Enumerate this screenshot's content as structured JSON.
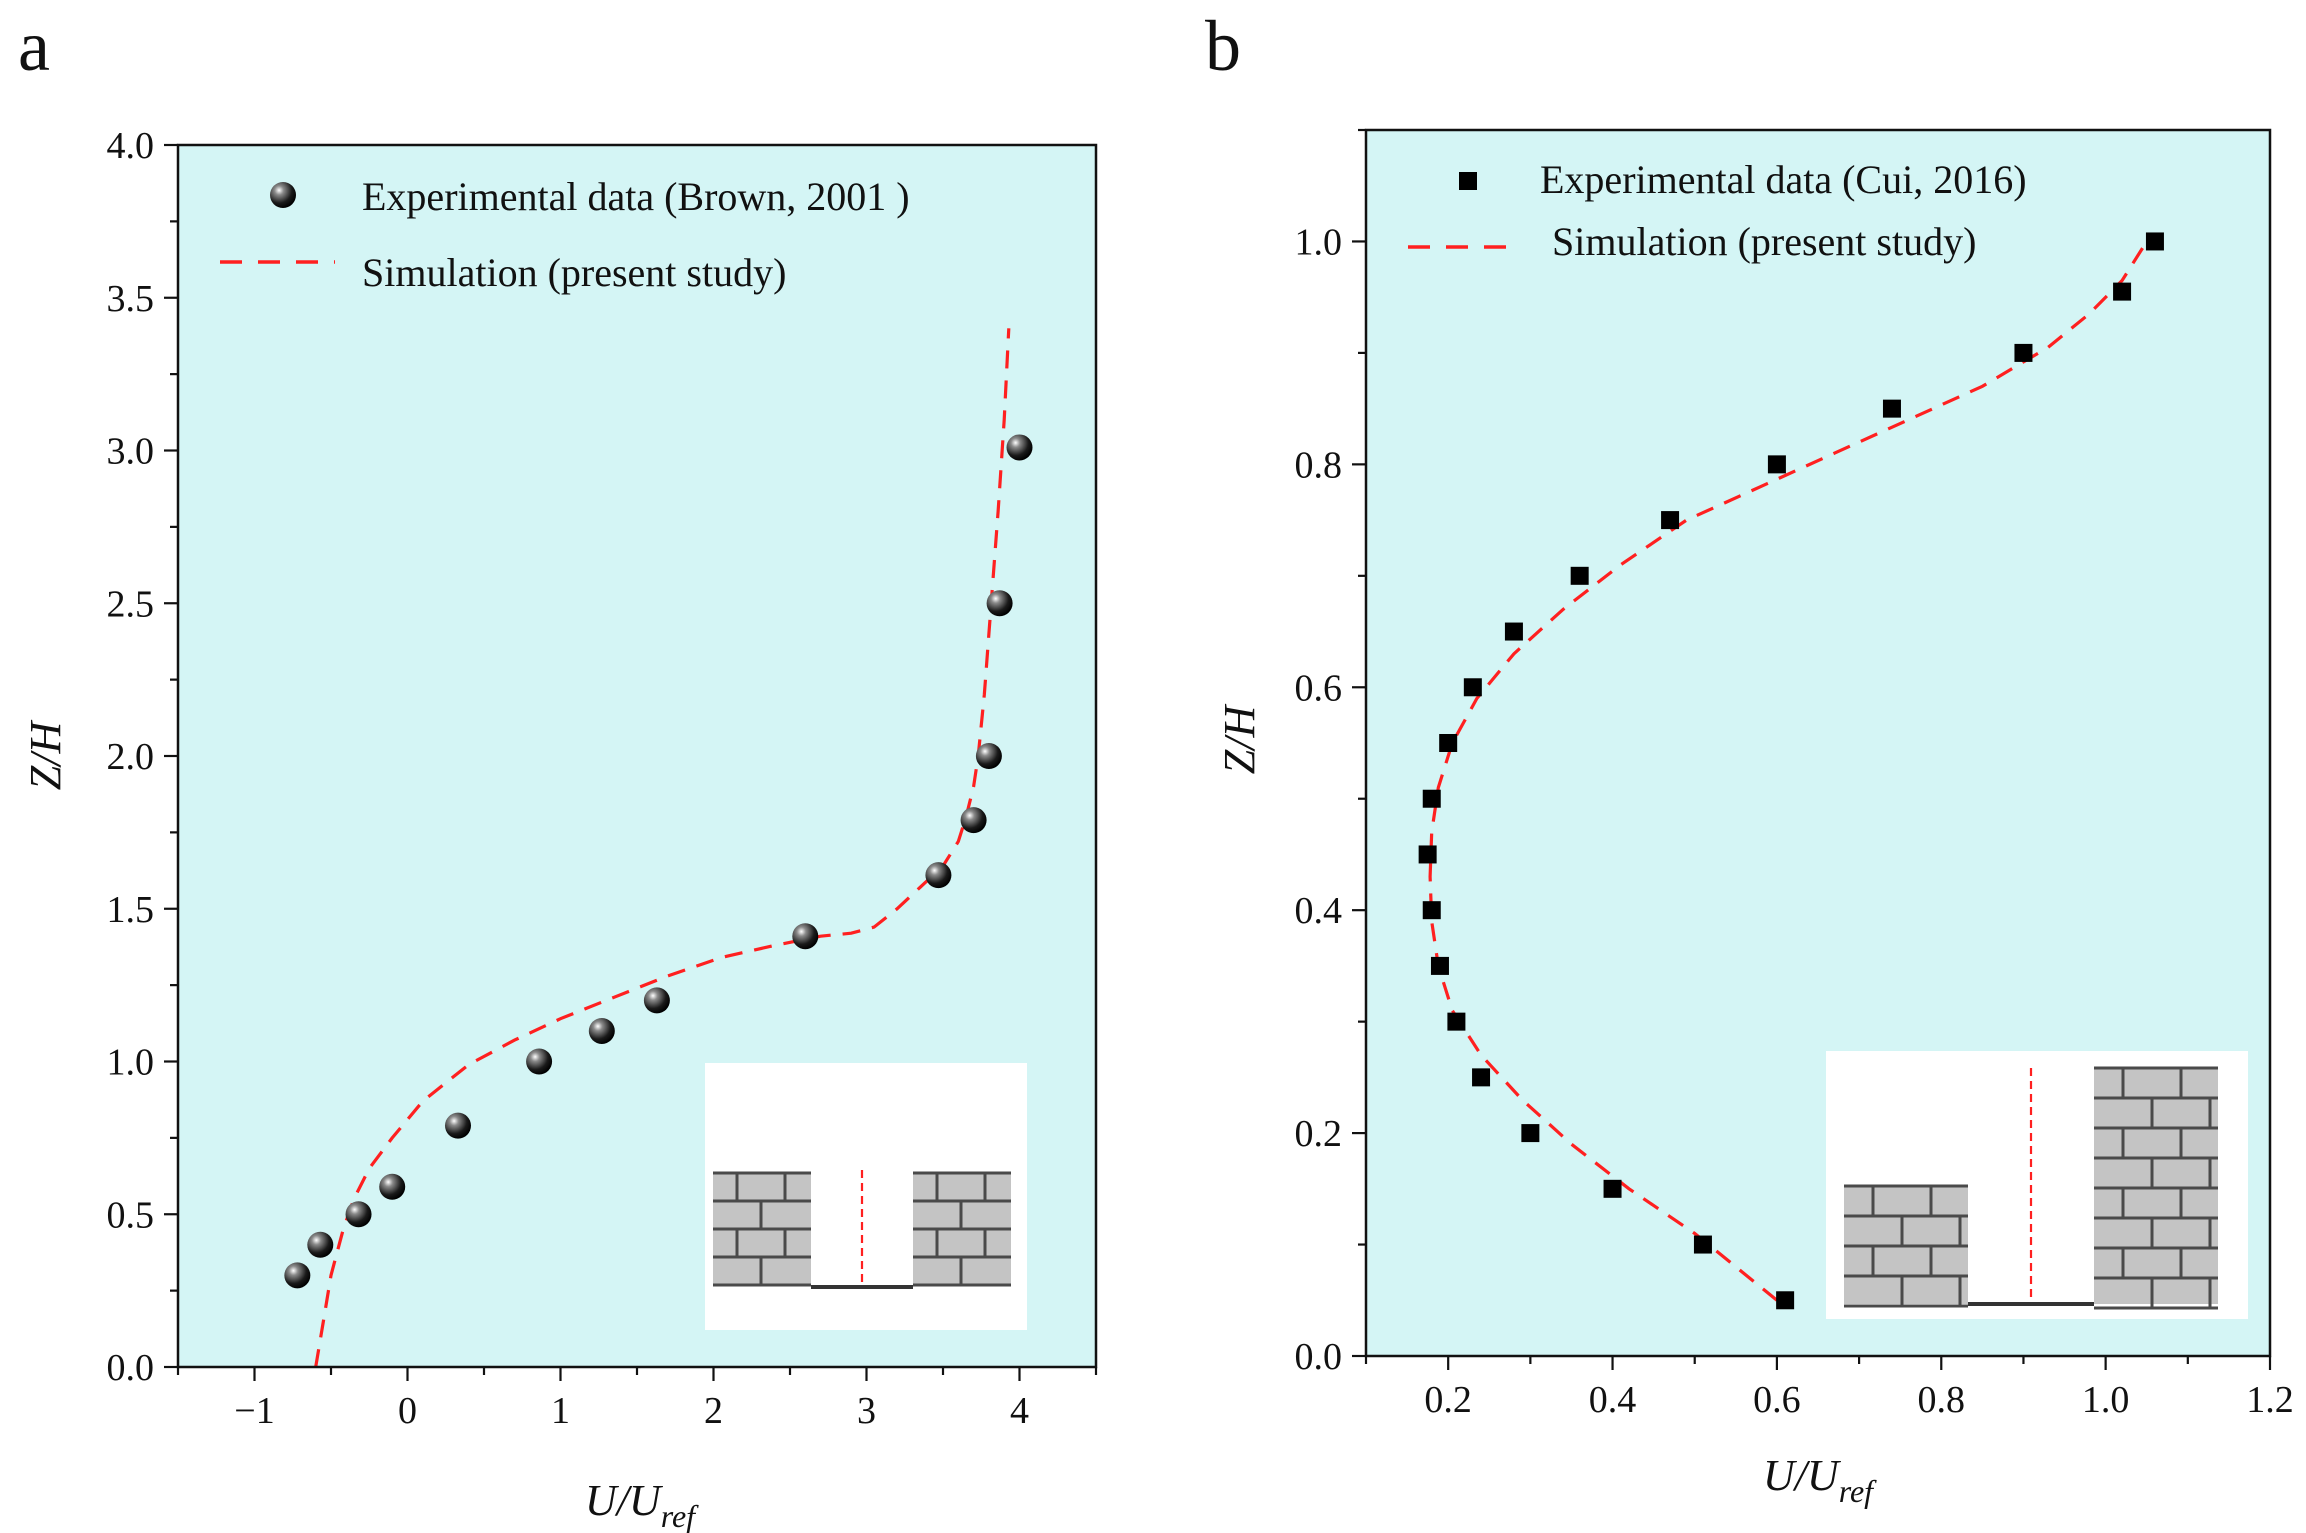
{
  "figure": {
    "colors": {
      "plot_bg": "#d4f5f5",
      "sim_line": "#ff2020",
      "marker": "#000000",
      "brick_fill": "#c4c4c4",
      "brick_line": "#4a4a4a",
      "inset_bg": "#ffffff"
    }
  },
  "chart_data": [
    {
      "panel_label": "a",
      "type": "scatter",
      "xlabel_main": "U/U",
      "xlabel_sub": "ref",
      "ylabel": "Z/H",
      "xlim": [
        -1.5,
        4.5
      ],
      "ylim": [
        0.0,
        4.0
      ],
      "xticks": [
        -1,
        0,
        1,
        2,
        3,
        4
      ],
      "xtick_labels": [
        "−1",
        "0",
        "1",
        "2",
        "3",
        "4"
      ],
      "yticks": [
        0.0,
        0.5,
        1.0,
        1.5,
        2.0,
        2.5,
        3.0,
        3.5,
        4.0
      ],
      "ytick_labels": [
        "0.0",
        "0.5",
        "1.0",
        "1.5",
        "2.0",
        "2.5",
        "3.0",
        "3.5",
        "4.0"
      ],
      "inset": "symmetric street canyon",
      "series": [
        {
          "name": "Experimental data (Brown, 2001 )",
          "marker": "sphere",
          "x": [
            -0.72,
            -0.57,
            -0.32,
            -0.1,
            0.33,
            0.86,
            1.27,
            1.63,
            2.6,
            3.47,
            3.7,
            3.8,
            3.87,
            4.0
          ],
          "y": [
            0.3,
            0.4,
            0.5,
            0.59,
            0.79,
            1.0,
            1.1,
            1.2,
            1.41,
            1.61,
            1.79,
            2.0,
            2.5,
            3.01
          ]
        },
        {
          "name": "Simulation (present study)",
          "marker": "dashed-line",
          "x": [
            -0.6,
            -0.55,
            -0.5,
            -0.42,
            -0.35,
            -0.25,
            -0.1,
            0.1,
            0.4,
            0.7,
            1.0,
            1.35,
            1.7,
            2.05,
            2.4,
            2.7,
            2.9,
            3.05,
            3.2,
            3.35,
            3.5,
            3.6,
            3.65,
            3.7,
            3.73,
            3.77,
            3.8,
            3.83,
            3.86,
            3.9,
            3.93
          ],
          "y": [
            0.0,
            0.15,
            0.3,
            0.45,
            0.55,
            0.65,
            0.75,
            0.87,
            0.99,
            1.07,
            1.14,
            1.21,
            1.28,
            1.34,
            1.38,
            1.41,
            1.42,
            1.44,
            1.5,
            1.57,
            1.64,
            1.72,
            1.8,
            1.9,
            2.0,
            2.2,
            2.4,
            2.6,
            2.8,
            3.1,
            3.4
          ]
        }
      ]
    },
    {
      "panel_label": "b",
      "type": "scatter",
      "xlabel_main": "U/U",
      "xlabel_sub": "ref",
      "ylabel": "Z/H",
      "xlim": [
        0.1,
        1.2
      ],
      "ylim": [
        0.0,
        1.1
      ],
      "xticks": [
        0.2,
        0.4,
        0.6,
        0.8,
        1.0,
        1.2
      ],
      "xtick_labels": [
        "0.2",
        "0.4",
        "0.6",
        "0.8",
        "1.0",
        "1.2"
      ],
      "yticks": [
        0.0,
        0.2,
        0.4,
        0.6,
        0.8,
        1.0
      ],
      "ytick_labels": [
        "0.0",
        "0.2",
        "0.4",
        "0.6",
        "0.8",
        "1.0"
      ],
      "inset": "step-up street canyon",
      "series": [
        {
          "name": "Experimental data (Cui, 2016)",
          "marker": "square",
          "x": [
            0.61,
            0.51,
            0.4,
            0.3,
            0.24,
            0.21,
            0.19,
            0.18,
            0.175,
            0.18,
            0.2,
            0.23,
            0.28,
            0.36,
            0.47,
            0.6,
            0.74,
            0.9,
            1.02,
            1.06
          ],
          "y": [
            0.05,
            0.1,
            0.15,
            0.2,
            0.25,
            0.3,
            0.35,
            0.4,
            0.45,
            0.5,
            0.55,
            0.6,
            0.65,
            0.7,
            0.75,
            0.8,
            0.85,
            0.9,
            0.955,
            1.0
          ]
        },
        {
          "name": "Simulation  (present study)",
          "marker": "dashed-line",
          "x": [
            0.6,
            0.55,
            0.5,
            0.42,
            0.35,
            0.29,
            0.24,
            0.205,
            0.188,
            0.18,
            0.178,
            0.18,
            0.188,
            0.205,
            0.235,
            0.28,
            0.34,
            0.41,
            0.49,
            0.58,
            0.67,
            0.76,
            0.85,
            0.93,
            0.98,
            1.02,
            1.05
          ],
          "y": [
            0.05,
            0.08,
            0.11,
            0.15,
            0.19,
            0.23,
            0.27,
            0.31,
            0.35,
            0.39,
            0.43,
            0.47,
            0.51,
            0.55,
            0.59,
            0.63,
            0.67,
            0.71,
            0.75,
            0.78,
            0.81,
            0.84,
            0.87,
            0.905,
            0.935,
            0.965,
            1.0
          ]
        }
      ]
    }
  ]
}
